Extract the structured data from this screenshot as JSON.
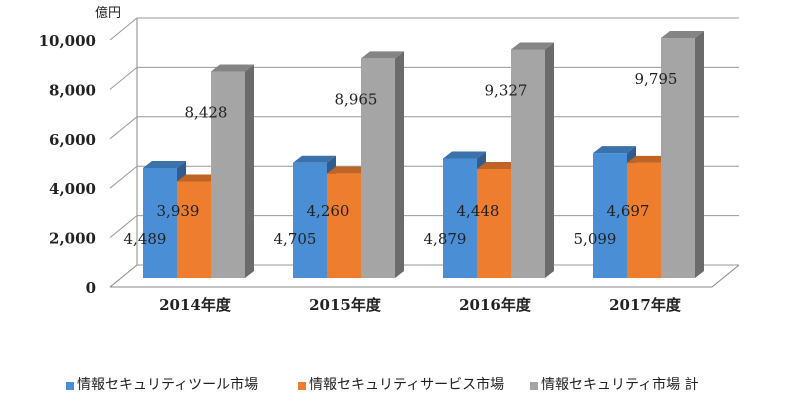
{
  "chart_data": {
    "type": "bar",
    "style": "3d-clustered-column",
    "unit_label": "億円",
    "categories": [
      "2014年度",
      "2015年度",
      "2016年度",
      "2017年度"
    ],
    "series": [
      {
        "name": "情報セキュリティツール市場",
        "color": "#4a8fd6",
        "values": [
          4489,
          4705,
          4879,
          5099
        ],
        "labels": [
          "4,489",
          "4,705",
          "4,879",
          "5,099"
        ]
      },
      {
        "name": "情報セキュリティサービス市場",
        "color": "#ef7d2e",
        "values": [
          3939,
          4260,
          4448,
          4697
        ],
        "labels": [
          "3,939",
          "4,260",
          "4,448",
          "4,697"
        ]
      },
      {
        "name": "情報セキュリティ市場 計",
        "color": "#a5a5a5",
        "values": [
          8428,
          8965,
          9327,
          9795
        ],
        "labels": [
          "8,428",
          "8,965",
          "9,327",
          "9,795"
        ]
      }
    ],
    "yticks": [
      "0",
      "2,000",
      "4,000",
      "6,000",
      "8,000",
      "10,000"
    ],
    "ylim": [
      0,
      10000
    ],
    "grid": true,
    "legend": "bottom"
  }
}
